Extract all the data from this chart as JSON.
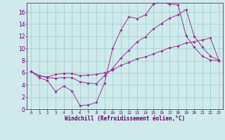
{
  "bg_color": "#ceeaea",
  "line_color": "#993399",
  "grid_color": "#a0cccc",
  "xlabel": "Windchill (Refroidissement éolien,°C)",
  "xlabel_color": "#660066",
  "tick_color": "#660066",
  "xlim": [
    -0.5,
    23.5
  ],
  "ylim": [
    0,
    17.5
  ],
  "xticks": [
    0,
    1,
    2,
    3,
    4,
    5,
    6,
    7,
    8,
    9,
    10,
    11,
    12,
    13,
    14,
    15,
    16,
    17,
    18,
    19,
    20,
    21,
    22,
    23
  ],
  "yticks": [
    0,
    2,
    4,
    6,
    8,
    10,
    12,
    14,
    16
  ],
  "line1_x": [
    0,
    1,
    2,
    3,
    4,
    5,
    6,
    7,
    8,
    9,
    10,
    11,
    12,
    13,
    14,
    15,
    16,
    17,
    18,
    19,
    20,
    21,
    22,
    23
  ],
  "line1_y": [
    6.2,
    5.2,
    4.7,
    2.9,
    3.8,
    3.0,
    0.6,
    0.7,
    1.1,
    4.3,
    10.0,
    13.0,
    15.2,
    14.9,
    15.5,
    17.3,
    17.6,
    17.3,
    17.2,
    12.1,
    10.2,
    8.7,
    8.1,
    8.0
  ],
  "line2_x": [
    0,
    1,
    2,
    3,
    4,
    5,
    6,
    7,
    8,
    9,
    10,
    11,
    12,
    13,
    14,
    15,
    16,
    17,
    18,
    19,
    20,
    21,
    22,
    23
  ],
  "line2_y": [
    6.2,
    5.5,
    5.3,
    5.7,
    5.9,
    5.9,
    5.5,
    5.6,
    5.7,
    6.0,
    6.4,
    7.2,
    7.7,
    8.3,
    8.6,
    9.1,
    9.6,
    10.1,
    10.4,
    10.9,
    11.1,
    11.4,
    11.7,
    8.1
  ],
  "line3_x": [
    0,
    1,
    2,
    3,
    4,
    5,
    6,
    7,
    8,
    9,
    10,
    11,
    12,
    13,
    14,
    15,
    16,
    17,
    18,
    19,
    20,
    21,
    22,
    23
  ],
  "line3_y": [
    6.2,
    5.5,
    5.2,
    5.1,
    5.2,
    5.2,
    4.5,
    4.3,
    4.2,
    5.5,
    6.7,
    8.4,
    9.7,
    11.1,
    11.9,
    13.2,
    14.1,
    15.0,
    15.5,
    16.4,
    12.0,
    10.2,
    8.7,
    8.1
  ],
  "figsize": [
    3.2,
    2.0
  ],
  "dpi": 100
}
